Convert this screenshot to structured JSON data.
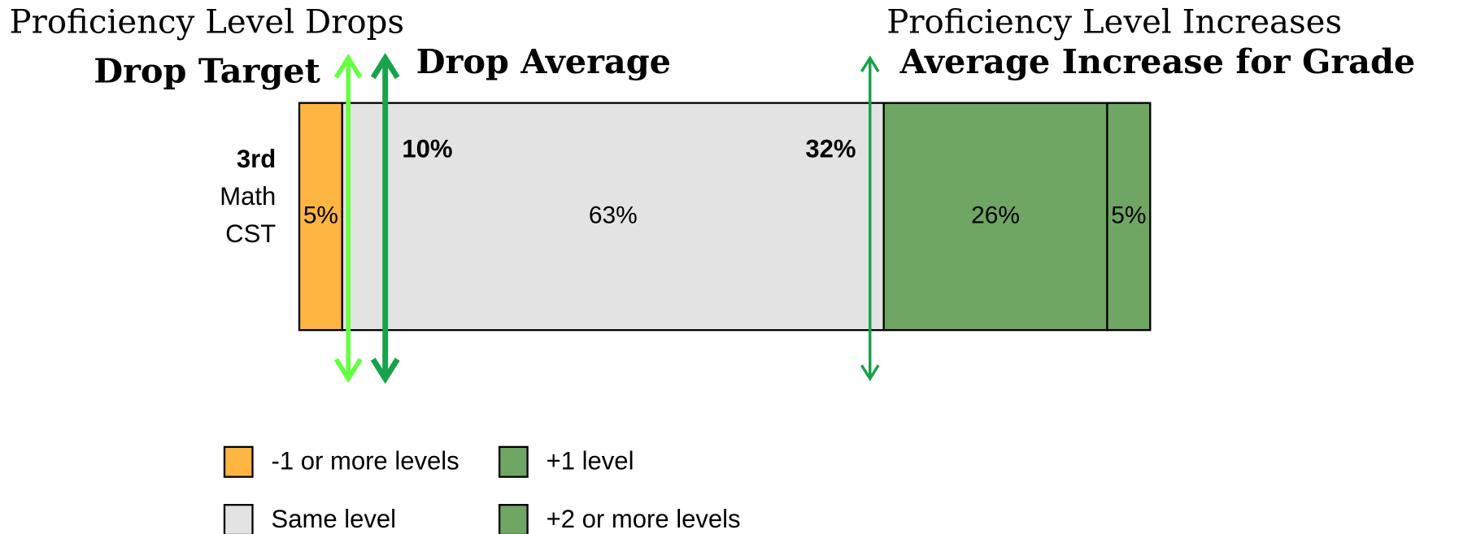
{
  "chart_data": {
    "type": "stacked_bar",
    "orientation": "horizontal",
    "left_heading": "Proficiency Level Drops",
    "right_heading": "Proficiency Level Increases",
    "categories": [
      "3rd Math CST"
    ],
    "series": [
      {
        "name": "-1 or more levels",
        "color": "#ffb541",
        "values": [
          5
        ],
        "value_labels": [
          "5%"
        ]
      },
      {
        "name": "Same level",
        "color": "#e3e3e3",
        "values": [
          63
        ],
        "value_labels": [
          "63%"
        ]
      },
      {
        "name": "+1 level",
        "color": "#6fa663",
        "values": [
          26
        ],
        "value_labels": [
          "26%"
        ]
      },
      {
        "name": "+2 or more levels",
        "color": "#6fa663",
        "values": [
          5
        ],
        "value_labels": [
          "5%"
        ]
      }
    ],
    "xlim": [
      0,
      100
    ],
    "annotations": [
      {
        "text": "Drop Target",
        "x": 5.7,
        "color": "#66ff44"
      },
      {
        "text": "Drop Average",
        "x": 10,
        "value": 10,
        "value_label": "10%",
        "color": "#17a34a"
      },
      {
        "text": "Average Increase for Grade",
        "x": 66.4,
        "value": 32,
        "value_label": "32%",
        "color": "#17a34a"
      }
    ]
  }
}
